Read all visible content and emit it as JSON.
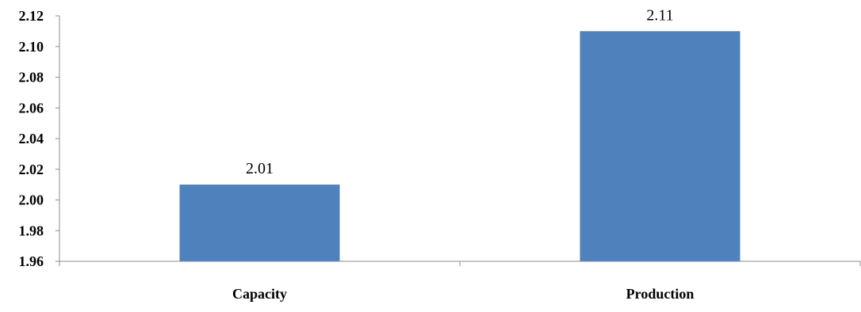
{
  "chart_data": {
    "type": "bar",
    "title": "",
    "xlabel": "",
    "ylabel": "",
    "categories": [
      "Capacity",
      "Production"
    ],
    "values": [
      2.01,
      2.11
    ],
    "data_labels": [
      "2.01",
      "2.11"
    ],
    "ylim": [
      1.96,
      2.12
    ],
    "yticks": [
      1.96,
      1.98,
      2.0,
      2.02,
      2.04,
      2.06,
      2.08,
      2.1,
      2.12
    ],
    "ytick_labels": [
      "1.96",
      "1.98",
      "2.00",
      "2.02",
      "2.04",
      "2.06",
      "2.08",
      "2.10",
      "2.12"
    ],
    "grid": false,
    "legend": "none",
    "bar_color": "#4f81bd"
  }
}
